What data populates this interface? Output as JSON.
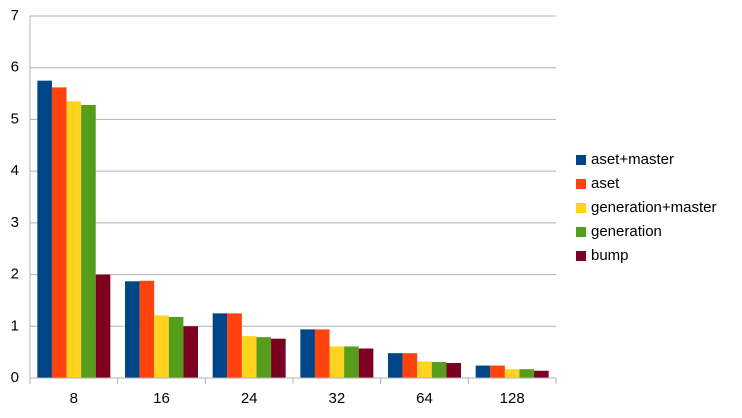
{
  "chart_data": {
    "type": "bar",
    "categories": [
      "8",
      "16",
      "24",
      "32",
      "64",
      "128"
    ],
    "series": [
      {
        "name": "aset+master",
        "color": "#004586",
        "values": [
          5.75,
          1.87,
          1.25,
          0.94,
          0.48,
          0.24
        ]
      },
      {
        "name": "aset",
        "color": "#ff420e",
        "values": [
          5.62,
          1.88,
          1.25,
          0.94,
          0.48,
          0.24
        ]
      },
      {
        "name": "generation+master",
        "color": "#ffd320",
        "values": [
          5.35,
          1.21,
          0.81,
          0.61,
          0.32,
          0.17
        ]
      },
      {
        "name": "generation",
        "color": "#579d1c",
        "values": [
          5.28,
          1.18,
          0.79,
          0.61,
          0.31,
          0.17
        ]
      },
      {
        "name": "bump",
        "color": "#7e0021",
        "values": [
          2.0,
          1.0,
          0.76,
          0.57,
          0.29,
          0.14
        ]
      }
    ],
    "ylim": [
      0,
      7
    ],
    "yticks": [
      0,
      1,
      2,
      3,
      4,
      5,
      6,
      7
    ],
    "grid": true,
    "legend": "right"
  }
}
